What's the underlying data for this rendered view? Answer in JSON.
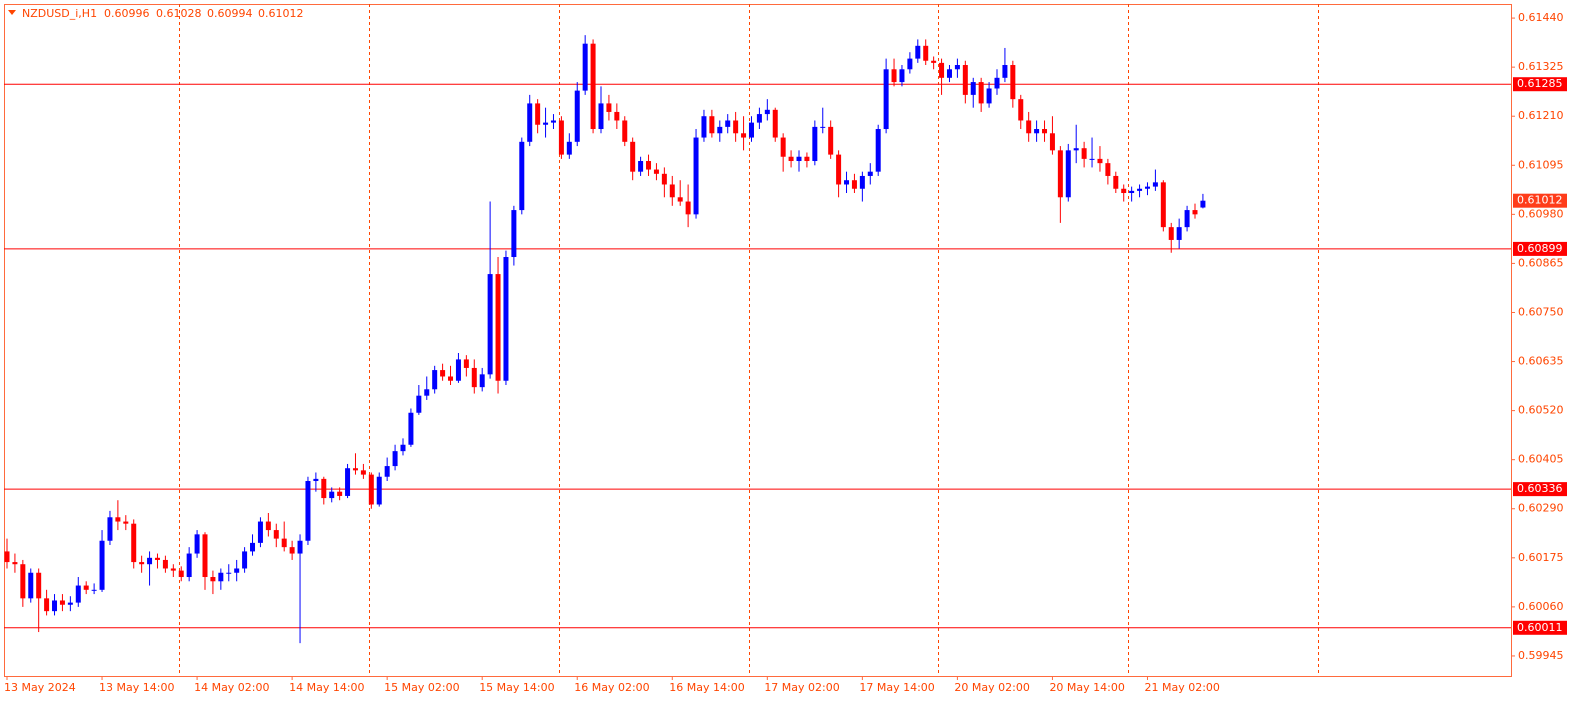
{
  "chart_data": {
    "type": "candlestick",
    "symbol": "NZDUSD_i,H1",
    "up_color": "#0000ff",
    "down_color": "#ff0000",
    "axis_color": "#ff6a3d",
    "level_color": "#ff0000",
    "ylim": [
      0.59898,
      0.61473
    ],
    "yticks": [
      {
        "value": 0.6144,
        "label": "0.61440"
      },
      0.61325,
      {
        "value": 0.6121,
        "label": "0.61210"
      },
      0.61095,
      {
        "value": 0.6098,
        "label": "0.60980"
      },
      0.60865,
      {
        "value": 0.6075,
        "label": "0.60750"
      },
      0.60635,
      {
        "value": 0.6052,
        "label": "0.60520"
      },
      0.60405,
      {
        "value": 0.6029,
        "label": "0.60290"
      },
      0.60175,
      {
        "value": 0.6006,
        "label": "0.60060"
      },
      0.59945
    ],
    "levels": [
      0.61285,
      0.60899,
      0.60336,
      0.60011
    ],
    "categories": [
      "13 May 2024",
      null,
      null,
      null,
      null,
      null,
      null,
      null,
      null,
      null,
      null,
      null,
      "13 May 14:00",
      null,
      null,
      null,
      null,
      null,
      null,
      null,
      null,
      null,
      null,
      null,
      "14 May 02:00",
      null,
      null,
      null,
      null,
      null,
      null,
      null,
      null,
      null,
      null,
      null,
      "14 May 14:00",
      null,
      null,
      null,
      null,
      null,
      null,
      null,
      null,
      null,
      null,
      null,
      "15 May 02:00",
      null,
      null,
      null,
      null,
      null,
      null,
      null,
      null,
      null,
      null,
      null,
      "15 May 14:00",
      null,
      null,
      null,
      null,
      null,
      null,
      null,
      null,
      null,
      null,
      null,
      "16 May 02:00",
      null,
      null,
      null,
      null,
      null,
      null,
      null,
      null,
      null,
      null,
      null,
      "16 May 14:00",
      null,
      null,
      null,
      null,
      null,
      null,
      null,
      null,
      null,
      null,
      null,
      "17 May 02:00",
      null,
      null,
      null,
      null,
      null,
      null,
      null,
      null,
      null,
      null,
      null,
      "17 May 14:00",
      null,
      null,
      null,
      null,
      null,
      null,
      null,
      null,
      null,
      null,
      null,
      "20 May 02:00",
      null,
      null,
      null,
      null,
      null,
      null,
      null,
      null,
      null,
      null,
      null,
      "20 May 14:00",
      null,
      null,
      null,
      null,
      null,
      null,
      null,
      null,
      null,
      null,
      null,
      "21 May 02:00",
      null,
      null,
      null,
      null,
      null,
      null,
      null
    ],
    "ohlc": [
      [
        0.6019,
        0.6022,
        0.6015,
        0.60165
      ],
      [
        0.60165,
        0.60185,
        0.6014,
        0.6016
      ],
      [
        0.6016,
        0.6017,
        0.6006,
        0.6008
      ],
      [
        0.6008,
        0.6015,
        0.6007,
        0.6014
      ],
      [
        0.6014,
        0.6015,
        0.60001,
        0.6008
      ],
      [
        0.6008,
        0.601,
        0.6004,
        0.6005
      ],
      [
        0.6005,
        0.6009,
        0.6004,
        0.60075
      ],
      [
        0.60075,
        0.6009,
        0.6005,
        0.60065
      ],
      [
        0.60065,
        0.60085,
        0.6005,
        0.6007
      ],
      [
        0.6007,
        0.6013,
        0.6006,
        0.6011
      ],
      [
        0.6011,
        0.6012,
        0.6009,
        0.601
      ],
      [
        0.601,
        0.60115,
        0.6009,
        0.601
      ],
      [
        0.601,
        0.6024,
        0.60095,
        0.60215
      ],
      [
        0.60215,
        0.60285,
        0.60205,
        0.6027
      ],
      [
        0.6027,
        0.6031,
        0.6024,
        0.6026
      ],
      [
        0.6026,
        0.60275,
        0.6024,
        0.60255
      ],
      [
        0.60255,
        0.60265,
        0.6015,
        0.60165
      ],
      [
        0.60165,
        0.6018,
        0.6014,
        0.6016
      ],
      [
        0.6016,
        0.6019,
        0.6011,
        0.60175
      ],
      [
        0.60175,
        0.60185,
        0.6015,
        0.6017
      ],
      [
        0.6017,
        0.6018,
        0.6014,
        0.6015
      ],
      [
        0.6015,
        0.6016,
        0.6013,
        0.60145
      ],
      [
        0.60145,
        0.60155,
        0.6012,
        0.6013
      ],
      [
        0.6013,
        0.602,
        0.6012,
        0.60185
      ],
      [
        0.60185,
        0.6024,
        0.60175,
        0.6023
      ],
      [
        0.6023,
        0.60235,
        0.601,
        0.6013
      ],
      [
        0.6013,
        0.60145,
        0.6009,
        0.6012
      ],
      [
        0.6012,
        0.6015,
        0.601,
        0.6014
      ],
      [
        0.6014,
        0.6016,
        0.6012,
        0.6014
      ],
      [
        0.6014,
        0.6017,
        0.6012,
        0.6015
      ],
      [
        0.6015,
        0.602,
        0.6014,
        0.6019
      ],
      [
        0.6019,
        0.6023,
        0.6018,
        0.6021
      ],
      [
        0.6021,
        0.6027,
        0.602,
        0.6026
      ],
      [
        0.6026,
        0.6028,
        0.60225,
        0.6024
      ],
      [
        0.6024,
        0.60255,
        0.602,
        0.6022
      ],
      [
        0.6022,
        0.6026,
        0.6019,
        0.602
      ],
      [
        0.602,
        0.60215,
        0.6017,
        0.60185
      ],
      [
        0.60185,
        0.6023,
        0.59975,
        0.60215
      ],
      [
        0.60215,
        0.60365,
        0.60205,
        0.60355
      ],
      [
        0.60355,
        0.60375,
        0.6033,
        0.6036
      ],
      [
        0.6036,
        0.60365,
        0.603,
        0.60315
      ],
      [
        0.60315,
        0.6034,
        0.60305,
        0.6033
      ],
      [
        0.6033,
        0.6034,
        0.6031,
        0.6032
      ],
      [
        0.6032,
        0.60395,
        0.60315,
        0.60385
      ],
      [
        0.60385,
        0.6042,
        0.6037,
        0.6038
      ],
      [
        0.6038,
        0.60395,
        0.6036,
        0.6037
      ],
      [
        0.6037,
        0.60375,
        0.6029,
        0.603
      ],
      [
        0.603,
        0.60375,
        0.60295,
        0.60365
      ],
      [
        0.60365,
        0.6041,
        0.60355,
        0.6039
      ],
      [
        0.6039,
        0.6044,
        0.6038,
        0.60425
      ],
      [
        0.60425,
        0.60455,
        0.60415,
        0.6044
      ],
      [
        0.6044,
        0.60525,
        0.60435,
        0.60515
      ],
      [
        0.60515,
        0.6058,
        0.6051,
        0.60555
      ],
      [
        0.60555,
        0.606,
        0.60545,
        0.6057
      ],
      [
        0.6057,
        0.60625,
        0.6056,
        0.60615
      ],
      [
        0.60615,
        0.6063,
        0.6059,
        0.606
      ],
      [
        0.606,
        0.60625,
        0.6058,
        0.6059
      ],
      [
        0.6059,
        0.60655,
        0.60585,
        0.6064
      ],
      [
        0.6064,
        0.6065,
        0.606,
        0.6062
      ],
      [
        0.6062,
        0.6064,
        0.6056,
        0.60575
      ],
      [
        0.60575,
        0.6062,
        0.60565,
        0.60605
      ],
      [
        0.60605,
        0.6101,
        0.60595,
        0.6084
      ],
      [
        0.6084,
        0.6088,
        0.6056,
        0.6059
      ],
      [
        0.6059,
        0.60895,
        0.6058,
        0.6088
      ],
      [
        0.6088,
        0.61,
        0.6086,
        0.6099
      ],
      [
        0.6099,
        0.6116,
        0.6098,
        0.6115
      ],
      [
        0.6115,
        0.6126,
        0.6114,
        0.6124
      ],
      [
        0.6124,
        0.6125,
        0.6117,
        0.6119
      ],
      [
        0.6119,
        0.6123,
        0.6116,
        0.61195
      ],
      [
        0.61195,
        0.61215,
        0.6118,
        0.612
      ],
      [
        0.612,
        0.6121,
        0.6111,
        0.6112
      ],
      [
        0.6112,
        0.6117,
        0.6111,
        0.6115
      ],
      [
        0.6115,
        0.6129,
        0.6114,
        0.6127
      ],
      [
        0.6127,
        0.614,
        0.6126,
        0.6138
      ],
      [
        0.6138,
        0.6139,
        0.6117,
        0.6118
      ],
      [
        0.6118,
        0.6128,
        0.6117,
        0.6124
      ],
      [
        0.6124,
        0.6126,
        0.612,
        0.6122
      ],
      [
        0.6122,
        0.6124,
        0.6118,
        0.612
      ],
      [
        0.612,
        0.6121,
        0.6114,
        0.6115
      ],
      [
        0.6115,
        0.6116,
        0.6106,
        0.6108
      ],
      [
        0.6108,
        0.61115,
        0.6107,
        0.61105
      ],
      [
        0.61105,
        0.6112,
        0.6107,
        0.61085
      ],
      [
        0.61085,
        0.611,
        0.6106,
        0.61075
      ],
      [
        0.61075,
        0.6109,
        0.6102,
        0.6105
      ],
      [
        0.6105,
        0.6107,
        0.61,
        0.6102
      ],
      [
        0.6102,
        0.6106,
        0.61,
        0.6101
      ],
      [
        0.6101,
        0.6105,
        0.6095,
        0.6098
      ],
      [
        0.6098,
        0.6118,
        0.6097,
        0.6116
      ],
      [
        0.6116,
        0.61225,
        0.6115,
        0.6121
      ],
      [
        0.6121,
        0.61225,
        0.6116,
        0.6117
      ],
      [
        0.6117,
        0.612,
        0.6115,
        0.61185
      ],
      [
        0.61185,
        0.61215,
        0.6117,
        0.612
      ],
      [
        0.612,
        0.6122,
        0.6115,
        0.6117
      ],
      [
        0.6117,
        0.6121,
        0.6113,
        0.6116
      ],
      [
        0.6116,
        0.6121,
        0.6115,
        0.61195
      ],
      [
        0.61195,
        0.6123,
        0.6118,
        0.61215
      ],
      [
        0.61215,
        0.6125,
        0.612,
        0.61225
      ],
      [
        0.61225,
        0.6123,
        0.6115,
        0.6116
      ],
      [
        0.6116,
        0.6117,
        0.6108,
        0.61115
      ],
      [
        0.61115,
        0.6113,
        0.6109,
        0.61105
      ],
      [
        0.61105,
        0.6113,
        0.6108,
        0.61115
      ],
      [
        0.61115,
        0.61125,
        0.6109,
        0.61105
      ],
      [
        0.61105,
        0.612,
        0.61095,
        0.61185
      ],
      [
        0.61185,
        0.6123,
        0.6117,
        0.61185
      ],
      [
        0.61185,
        0.612,
        0.6111,
        0.6112
      ],
      [
        0.6112,
        0.6113,
        0.6102,
        0.6105
      ],
      [
        0.6105,
        0.6108,
        0.6103,
        0.6106
      ],
      [
        0.6106,
        0.61075,
        0.6103,
        0.6104
      ],
      [
        0.6104,
        0.6108,
        0.6101,
        0.6107
      ],
      [
        0.6107,
        0.611,
        0.6105,
        0.6108
      ],
      [
        0.6108,
        0.6119,
        0.6107,
        0.6118
      ],
      [
        0.6118,
        0.61345,
        0.6117,
        0.6132
      ],
      [
        0.6132,
        0.61345,
        0.6128,
        0.6129
      ],
      [
        0.6129,
        0.6133,
        0.6128,
        0.6132
      ],
      [
        0.6132,
        0.6136,
        0.6131,
        0.61345
      ],
      [
        0.61345,
        0.6139,
        0.61335,
        0.61375
      ],
      [
        0.61375,
        0.6139,
        0.6133,
        0.6134
      ],
      [
        0.6134,
        0.6135,
        0.6132,
        0.61335
      ],
      [
        0.61335,
        0.61345,
        0.6126,
        0.613
      ],
      [
        0.613,
        0.6133,
        0.6129,
        0.6132
      ],
      [
        0.6132,
        0.61345,
        0.613,
        0.6133
      ],
      [
        0.6133,
        0.6134,
        0.6124,
        0.6126
      ],
      [
        0.6126,
        0.613,
        0.6123,
        0.6129
      ],
      [
        0.6129,
        0.613,
        0.6122,
        0.6124
      ],
      [
        0.6124,
        0.6129,
        0.6123,
        0.61275
      ],
      [
        0.61275,
        0.6132,
        0.6126,
        0.613
      ],
      [
        0.613,
        0.6137,
        0.6129,
        0.6133
      ],
      [
        0.6133,
        0.6134,
        0.6123,
        0.6125
      ],
      [
        0.6125,
        0.6126,
        0.6118,
        0.612
      ],
      [
        0.612,
        0.6122,
        0.6115,
        0.6117
      ],
      [
        0.6117,
        0.612,
        0.6115,
        0.6118
      ],
      [
        0.6118,
        0.612,
        0.6115,
        0.6117
      ],
      [
        0.6117,
        0.6121,
        0.6112,
        0.6113
      ],
      [
        0.6113,
        0.6114,
        0.6096,
        0.6102
      ],
      [
        0.6102,
        0.61145,
        0.6101,
        0.6113
      ],
      [
        0.6113,
        0.6119,
        0.611,
        0.61135
      ],
      [
        0.61135,
        0.6115,
        0.6109,
        0.6111
      ],
      [
        0.6111,
        0.6116,
        0.6109,
        0.6111
      ],
      [
        0.6111,
        0.6114,
        0.6108,
        0.611
      ],
      [
        0.611,
        0.6111,
        0.6105,
        0.6107
      ],
      [
        0.6107,
        0.6108,
        0.6103,
        0.6104
      ],
      [
        0.6104,
        0.6105,
        0.6101,
        0.6103
      ],
      [
        0.6103,
        0.61045,
        0.6101,
        0.61035
      ],
      [
        0.61035,
        0.6105,
        0.6102,
        0.6104
      ],
      [
        0.6104,
        0.61055,
        0.61025,
        0.61045
      ],
      [
        0.61045,
        0.61085,
        0.61035,
        0.61055
      ],
      [
        0.61055,
        0.6106,
        0.6094,
        0.6095
      ],
      [
        0.6095,
        0.6096,
        0.6089,
        0.6092
      ],
      [
        0.6092,
        0.6097,
        0.609,
        0.6095
      ],
      [
        0.6095,
        0.61,
        0.6094,
        0.6099
      ],
      [
        0.6099,
        0.61005,
        0.6097,
        0.6098
      ],
      [
        0.60996,
        0.61028,
        0.60994,
        0.61012
      ]
    ]
  }
}
